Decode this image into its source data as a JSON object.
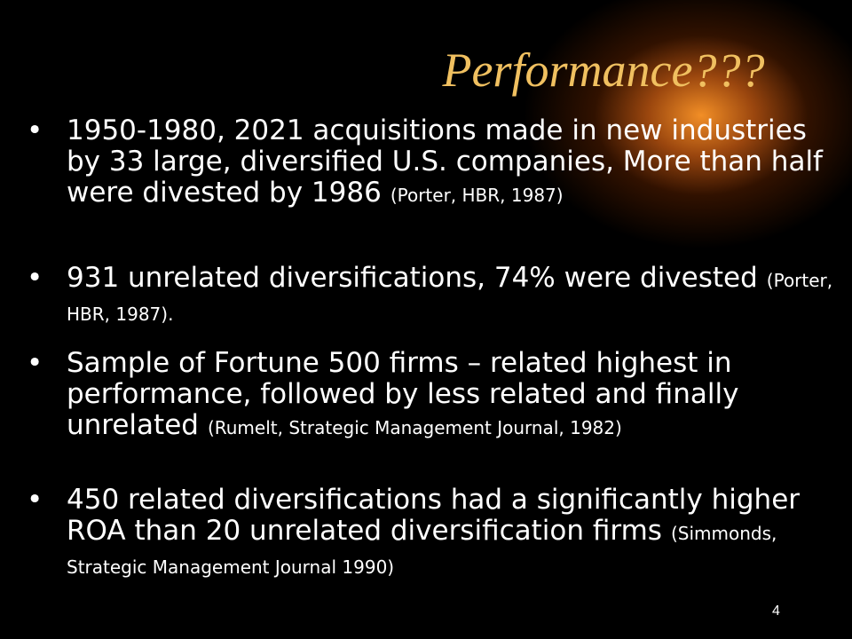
{
  "title": "Performance???",
  "bullets": [
    {
      "text": "1950-1980, 2021 acquisitions made in new industries by 33 large, diversified U.S. companies, More than half were divested by 1986",
      "citation": "(Porter, HBR, 1987)"
    },
    {
      "text": "931 unrelated diversifications, 74% were divested",
      "citation": "(Porter, HBR, 1987)."
    },
    {
      "text": "Sample of Fortune 500 firms – related highest in performance, followed by less related and finally unrelated",
      "citation": "(Rumelt, Strategic Management Journal, 1982)"
    },
    {
      "text": "450 related diversifications had a significantly higher ROA than 20 unrelated diversification firms",
      "citation": "(Simmonds, Strategic Management Journal 1990)"
    }
  ],
  "page_number": "4"
}
